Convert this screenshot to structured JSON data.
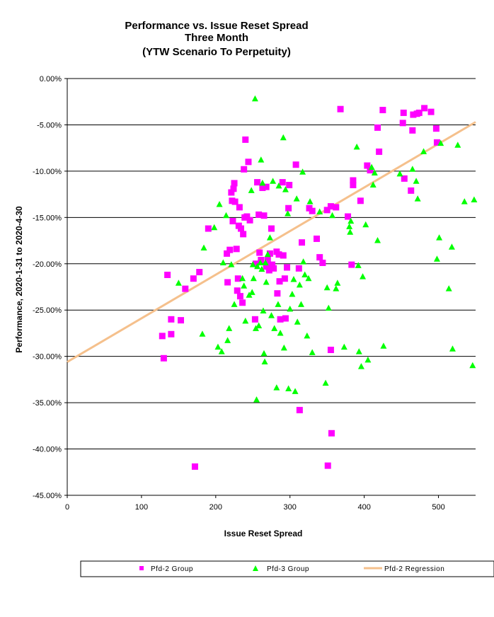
{
  "chart_data": {
    "type": "scatter",
    "title": [
      "Performance vs. Issue Reset Spread",
      "Three Month",
      "(YTW Scenario To Perpetuity)"
    ],
    "xlabel": "Issue Reset Spread",
    "ylabel": "Performance, 2020-1-31 to 2020-4-30",
    "xlim": [
      0,
      550
    ],
    "ylim": [
      -45,
      0
    ],
    "x_ticks": [
      0,
      100,
      200,
      300,
      400,
      500
    ],
    "x_tick_labels": [
      "0",
      "100",
      "200",
      "300",
      "400",
      "500"
    ],
    "y_ticks": [
      0,
      -5,
      -10,
      -15,
      -20,
      -25,
      -30,
      -35,
      -40,
      -45
    ],
    "y_tick_labels": [
      "0.00%",
      "-5.00%",
      "-10.00%",
      "-15.00%",
      "-20.00%",
      "-25.00%",
      "-30.00%",
      "-35.00%",
      "-40.00%",
      "-45.00%"
    ],
    "grid": "horizontal",
    "legend_position": "bottom",
    "series": [
      {
        "name": "Pfd-2 Group",
        "marker": "square",
        "color": "#ff00ff",
        "points": [
          [
            128,
            -27.8
          ],
          [
            130,
            -30.2
          ],
          [
            135,
            -21.2
          ],
          [
            140,
            -27.6
          ],
          [
            140,
            -26.0
          ],
          [
            153,
            -26.1
          ],
          [
            159,
            -22.7
          ],
          [
            170,
            -21.6
          ],
          [
            172,
            -41.9
          ],
          [
            178,
            -20.9
          ],
          [
            190,
            -16.2
          ],
          [
            215,
            -18.9
          ],
          [
            216,
            -22.0
          ],
          [
            219,
            -18.5
          ],
          [
            221,
            -12.3
          ],
          [
            222,
            -13.2
          ],
          [
            223,
            -15.4
          ],
          [
            224,
            -11.9
          ],
          [
            225,
            -11.3
          ],
          [
            226,
            -13.3
          ],
          [
            228,
            -18.4
          ],
          [
            229,
            -22.9
          ],
          [
            230,
            -21.6
          ],
          [
            231,
            -15.9
          ],
          [
            232,
            -13.9
          ],
          [
            233,
            -23.5
          ],
          [
            234,
            -16.2
          ],
          [
            236,
            -24.2
          ],
          [
            237,
            -16.8
          ],
          [
            238,
            -9.8
          ],
          [
            239,
            -15.0
          ],
          [
            240,
            -6.6
          ],
          [
            242,
            -14.9
          ],
          [
            244,
            -9.0
          ],
          [
            246,
            -15.3
          ],
          [
            253,
            -26.0
          ],
          [
            254,
            -20.0
          ],
          [
            256,
            -11.2
          ],
          [
            258,
            -14.7
          ],
          [
            259,
            -18.8
          ],
          [
            261,
            -19.6
          ],
          [
            263,
            -11.8
          ],
          [
            265,
            -14.8
          ],
          [
            268,
            -11.7
          ],
          [
            268,
            -20.3
          ],
          [
            270,
            -19.6
          ],
          [
            272,
            -20.7
          ],
          [
            273,
            -18.9
          ],
          [
            275,
            -16.2
          ],
          [
            276,
            -20.1
          ],
          [
            278,
            -20.5
          ],
          [
            282,
            -18.7
          ],
          [
            283,
            -23.2
          ],
          [
            285,
            -19.0
          ],
          [
            286,
            -21.9
          ],
          [
            287,
            -26.0
          ],
          [
            290,
            -11.2
          ],
          [
            291,
            -19.1
          ],
          [
            293,
            -21.6
          ],
          [
            294,
            -25.9
          ],
          [
            296,
            -20.4
          ],
          [
            298,
            -14.0
          ],
          [
            299,
            -11.5
          ],
          [
            308,
            -9.3
          ],
          [
            312,
            -20.5
          ],
          [
            313,
            -35.8
          ],
          [
            316,
            -17.7
          ],
          [
            326,
            -14.0
          ],
          [
            330,
            -14.3
          ],
          [
            336,
            -17.3
          ],
          [
            340,
            -19.3
          ],
          [
            344,
            -19.9
          ],
          [
            350,
            -14.2
          ],
          [
            351,
            -41.8
          ],
          [
            355,
            -13.8
          ],
          [
            355,
            -29.3
          ],
          [
            356,
            -38.3
          ],
          [
            362,
            -13.9
          ],
          [
            368,
            -3.3
          ],
          [
            378,
            -14.9
          ],
          [
            383,
            -20.1
          ],
          [
            385,
            -11.5
          ],
          [
            385,
            -11.0
          ],
          [
            395,
            -13.2
          ],
          [
            404,
            -9.4
          ],
          [
            408,
            -9.9
          ],
          [
            418,
            -5.3
          ],
          [
            420,
            -7.9
          ],
          [
            425,
            -3.4
          ],
          [
            452,
            -4.8
          ],
          [
            453,
            -3.7
          ],
          [
            454,
            -10.8
          ],
          [
            463,
            -12.1
          ],
          [
            465,
            -5.6
          ],
          [
            466,
            -3.9
          ],
          [
            471,
            -3.8
          ],
          [
            474,
            -3.7
          ],
          [
            481,
            -3.2
          ],
          [
            490,
            -3.6
          ],
          [
            497,
            -5.4
          ],
          [
            498,
            -6.9
          ]
        ]
      },
      {
        "name": "Pfd-3 Group",
        "marker": "triangle",
        "color": "#00ff00",
        "points": [
          [
            150,
            -22.1
          ],
          [
            182,
            -27.6
          ],
          [
            184,
            -18.3
          ],
          [
            198,
            -16.1
          ],
          [
            203,
            -29.0
          ],
          [
            205,
            -13.6
          ],
          [
            208,
            -29.5
          ],
          [
            210,
            -19.9
          ],
          [
            214,
            -14.8
          ],
          [
            216,
            -28.3
          ],
          [
            218,
            -27.0
          ],
          [
            221,
            -20.1
          ],
          [
            225,
            -24.4
          ],
          [
            236,
            -21.6
          ],
          [
            238,
            -22.4
          ],
          [
            240,
            -26.2
          ],
          [
            245,
            -23.4
          ],
          [
            248,
            -12.1
          ],
          [
            249,
            -23.1
          ],
          [
            250,
            -20.1
          ],
          [
            251,
            -21.6
          ],
          [
            253,
            -2.2
          ],
          [
            254,
            -27.0
          ],
          [
            255,
            -34.7
          ],
          [
            256,
            -20.3
          ],
          [
            258,
            -26.7
          ],
          [
            260,
            -19.9
          ],
          [
            261,
            -8.8
          ],
          [
            262,
            -20.6
          ],
          [
            263,
            -11.3
          ],
          [
            264,
            -25.1
          ],
          [
            265,
            -29.7
          ],
          [
            266,
            -30.6
          ],
          [
            267,
            -19.9
          ],
          [
            268,
            -22.0
          ],
          [
            270,
            -19.0
          ],
          [
            273,
            -17.2
          ],
          [
            275,
            -25.6
          ],
          [
            277,
            -11.1
          ],
          [
            279,
            -27.0
          ],
          [
            282,
            -33.4
          ],
          [
            284,
            -24.4
          ],
          [
            285,
            -11.6
          ],
          [
            287,
            -27.5
          ],
          [
            291,
            -6.4
          ],
          [
            292,
            -29.1
          ],
          [
            294,
            -12.0
          ],
          [
            297,
            -14.6
          ],
          [
            298,
            -33.5
          ],
          [
            300,
            -24.9
          ],
          [
            303,
            -23.3
          ],
          [
            305,
            -21.7
          ],
          [
            307,
            -33.8
          ],
          [
            309,
            -13.0
          ],
          [
            310,
            -26.3
          ],
          [
            313,
            -22.3
          ],
          [
            315,
            -24.4
          ],
          [
            317,
            -10.1
          ],
          [
            318,
            -19.8
          ],
          [
            320,
            -21.2
          ],
          [
            323,
            -27.8
          ],
          [
            325,
            -21.6
          ],
          [
            327,
            -13.3
          ],
          [
            330,
            -29.6
          ],
          [
            340,
            -14.4
          ],
          [
            348,
            -32.9
          ],
          [
            350,
            -22.6
          ],
          [
            352,
            -24.8
          ],
          [
            357,
            -14.8
          ],
          [
            362,
            -22.7
          ],
          [
            364,
            -22.1
          ],
          [
            373,
            -29.0
          ],
          [
            380,
            -16.0
          ],
          [
            381,
            -16.6
          ],
          [
            382,
            -15.4
          ],
          [
            390,
            -7.4
          ],
          [
            392,
            -20.2
          ],
          [
            393,
            -29.5
          ],
          [
            396,
            -31.1
          ],
          [
            398,
            -21.4
          ],
          [
            402,
            -15.8
          ],
          [
            405,
            -30.4
          ],
          [
            410,
            -9.6
          ],
          [
            412,
            -11.5
          ],
          [
            414,
            -10.2
          ],
          [
            418,
            -17.5
          ],
          [
            426,
            -28.9
          ],
          [
            448,
            -10.3
          ],
          [
            465,
            -9.8
          ],
          [
            470,
            -11.1
          ],
          [
            472,
            -13.0
          ],
          [
            480,
            -7.9
          ],
          [
            498,
            -19.5
          ],
          [
            501,
            -17.2
          ],
          [
            503,
            -7.0
          ],
          [
            514,
            -22.7
          ],
          [
            518,
            -18.2
          ],
          [
            519,
            -29.2
          ],
          [
            526,
            -7.2
          ],
          [
            535,
            -13.3
          ],
          [
            546,
            -31.0
          ],
          [
            548,
            -13.1
          ]
        ]
      },
      {
        "name": "Pfd-2 Regression",
        "type": "line",
        "color": "#f5c08c",
        "points": [
          [
            0,
            -30.6
          ],
          [
            550,
            -4.7
          ]
        ]
      }
    ]
  }
}
